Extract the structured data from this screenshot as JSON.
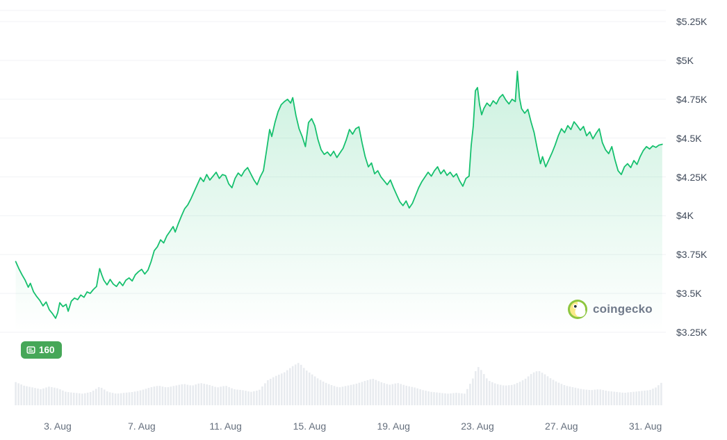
{
  "chart_data": {
    "type": "line",
    "xlim": [
      1.0,
      31.8
    ],
    "ylim": [
      3250,
      5250
    ],
    "grid": "horizontal",
    "legend": "none",
    "y_axis": {
      "side": "right",
      "tick_labels": [
        "$5.25K",
        "$5K",
        "$4.75K",
        "$4.5K",
        "$4.25K",
        "$4K",
        "$3.75K",
        "$3.5K",
        "$3.25K"
      ],
      "tick_values": [
        5250,
        5000,
        4750,
        4500,
        4250,
        4000,
        3750,
        3500,
        3250
      ]
    },
    "x_axis": {
      "tick_labels": [
        "3. Aug",
        "7. Aug",
        "11. Aug",
        "15. Aug",
        "19. Aug",
        "23. Aug",
        "27. Aug",
        "31. Aug"
      ],
      "tick_days": [
        3,
        7,
        11,
        15,
        19,
        23,
        27,
        31
      ]
    },
    "series": [
      {
        "name": "price",
        "unit": "USD",
        "points": [
          [
            1.0,
            3705
          ],
          [
            1.15,
            3660
          ],
          [
            1.3,
            3620
          ],
          [
            1.45,
            3585
          ],
          [
            1.6,
            3540
          ],
          [
            1.7,
            3565
          ],
          [
            1.85,
            3510
          ],
          [
            2.0,
            3480
          ],
          [
            2.15,
            3455
          ],
          [
            2.3,
            3420
          ],
          [
            2.45,
            3445
          ],
          [
            2.6,
            3395
          ],
          [
            2.75,
            3370
          ],
          [
            2.9,
            3340
          ],
          [
            3.0,
            3375
          ],
          [
            3.1,
            3440
          ],
          [
            3.25,
            3415
          ],
          [
            3.4,
            3430
          ],
          [
            3.5,
            3385
          ],
          [
            3.65,
            3450
          ],
          [
            3.8,
            3470
          ],
          [
            3.95,
            3460
          ],
          [
            4.1,
            3490
          ],
          [
            4.25,
            3475
          ],
          [
            4.4,
            3510
          ],
          [
            4.55,
            3500
          ],
          [
            4.7,
            3525
          ],
          [
            4.85,
            3545
          ],
          [
            5.0,
            3660
          ],
          [
            5.1,
            3620
          ],
          [
            5.2,
            3585
          ],
          [
            5.35,
            3555
          ],
          [
            5.5,
            3590
          ],
          [
            5.65,
            3560
          ],
          [
            5.8,
            3545
          ],
          [
            5.95,
            3575
          ],
          [
            6.1,
            3550
          ],
          [
            6.25,
            3585
          ],
          [
            6.4,
            3600
          ],
          [
            6.55,
            3580
          ],
          [
            6.7,
            3620
          ],
          [
            6.85,
            3640
          ],
          [
            7.0,
            3655
          ],
          [
            7.15,
            3625
          ],
          [
            7.3,
            3650
          ],
          [
            7.45,
            3705
          ],
          [
            7.6,
            3775
          ],
          [
            7.75,
            3800
          ],
          [
            7.9,
            3845
          ],
          [
            8.05,
            3825
          ],
          [
            8.2,
            3870
          ],
          [
            8.35,
            3900
          ],
          [
            8.5,
            3930
          ],
          [
            8.6,
            3895
          ],
          [
            8.75,
            3950
          ],
          [
            8.9,
            4000
          ],
          [
            9.05,
            4045
          ],
          [
            9.2,
            4070
          ],
          [
            9.35,
            4110
          ],
          [
            9.5,
            4155
          ],
          [
            9.65,
            4200
          ],
          [
            9.8,
            4245
          ],
          [
            9.95,
            4220
          ],
          [
            10.1,
            4265
          ],
          [
            10.25,
            4230
          ],
          [
            10.4,
            4255
          ],
          [
            10.55,
            4280
          ],
          [
            10.7,
            4240
          ],
          [
            10.85,
            4265
          ],
          [
            11.0,
            4258
          ],
          [
            11.15,
            4205
          ],
          [
            11.3,
            4180
          ],
          [
            11.45,
            4240
          ],
          [
            11.6,
            4275
          ],
          [
            11.75,
            4255
          ],
          [
            11.9,
            4290
          ],
          [
            12.05,
            4310
          ],
          [
            12.2,
            4270
          ],
          [
            12.35,
            4230
          ],
          [
            12.5,
            4200
          ],
          [
            12.65,
            4250
          ],
          [
            12.8,
            4290
          ],
          [
            12.95,
            4420
          ],
          [
            13.1,
            4555
          ],
          [
            13.2,
            4510
          ],
          [
            13.35,
            4600
          ],
          [
            13.5,
            4670
          ],
          [
            13.65,
            4715
          ],
          [
            13.8,
            4735
          ],
          [
            13.95,
            4750
          ],
          [
            14.1,
            4725
          ],
          [
            14.2,
            4760
          ],
          [
            14.35,
            4645
          ],
          [
            14.5,
            4560
          ],
          [
            14.65,
            4510
          ],
          [
            14.8,
            4445
          ],
          [
            14.95,
            4600
          ],
          [
            15.1,
            4625
          ],
          [
            15.25,
            4580
          ],
          [
            15.4,
            4490
          ],
          [
            15.55,
            4425
          ],
          [
            15.7,
            4395
          ],
          [
            15.85,
            4410
          ],
          [
            16.0,
            4385
          ],
          [
            16.15,
            4415
          ],
          [
            16.3,
            4375
          ],
          [
            16.45,
            4405
          ],
          [
            16.6,
            4435
          ],
          [
            16.75,
            4490
          ],
          [
            16.9,
            4555
          ],
          [
            17.05,
            4525
          ],
          [
            17.2,
            4560
          ],
          [
            17.35,
            4572
          ],
          [
            17.5,
            4470
          ],
          [
            17.65,
            4380
          ],
          [
            17.8,
            4315
          ],
          [
            17.95,
            4340
          ],
          [
            18.1,
            4270
          ],
          [
            18.25,
            4290
          ],
          [
            18.4,
            4250
          ],
          [
            18.55,
            4225
          ],
          [
            18.7,
            4200
          ],
          [
            18.85,
            4230
          ],
          [
            19.0,
            4180
          ],
          [
            19.15,
            4135
          ],
          [
            19.3,
            4090
          ],
          [
            19.45,
            4065
          ],
          [
            19.6,
            4095
          ],
          [
            19.75,
            4050
          ],
          [
            19.9,
            4080
          ],
          [
            20.05,
            4130
          ],
          [
            20.2,
            4180
          ],
          [
            20.35,
            4220
          ],
          [
            20.5,
            4250
          ],
          [
            20.65,
            4280
          ],
          [
            20.8,
            4255
          ],
          [
            20.95,
            4290
          ],
          [
            21.1,
            4315
          ],
          [
            21.25,
            4270
          ],
          [
            21.4,
            4295
          ],
          [
            21.55,
            4260
          ],
          [
            21.7,
            4280
          ],
          [
            21.85,
            4250
          ],
          [
            22.0,
            4270
          ],
          [
            22.15,
            4225
          ],
          [
            22.3,
            4190
          ],
          [
            22.45,
            4240
          ],
          [
            22.6,
            4255
          ],
          [
            22.7,
            4450
          ],
          [
            22.8,
            4580
          ],
          [
            22.9,
            4805
          ],
          [
            23.0,
            4825
          ],
          [
            23.1,
            4715
          ],
          [
            23.2,
            4650
          ],
          [
            23.3,
            4690
          ],
          [
            23.45,
            4725
          ],
          [
            23.6,
            4705
          ],
          [
            23.75,
            4740
          ],
          [
            23.9,
            4720
          ],
          [
            24.05,
            4760
          ],
          [
            24.2,
            4780
          ],
          [
            24.35,
            4745
          ],
          [
            24.5,
            4720
          ],
          [
            24.65,
            4750
          ],
          [
            24.8,
            4735
          ],
          [
            24.9,
            4930
          ],
          [
            25.0,
            4760
          ],
          [
            25.1,
            4690
          ],
          [
            25.25,
            4660
          ],
          [
            25.4,
            4685
          ],
          [
            25.55,
            4605
          ],
          [
            25.7,
            4535
          ],
          [
            25.85,
            4430
          ],
          [
            26.0,
            4335
          ],
          [
            26.1,
            4380
          ],
          [
            26.25,
            4315
          ],
          [
            26.4,
            4360
          ],
          [
            26.55,
            4405
          ],
          [
            26.7,
            4455
          ],
          [
            26.85,
            4515
          ],
          [
            27.0,
            4560
          ],
          [
            27.15,
            4535
          ],
          [
            27.3,
            4580
          ],
          [
            27.45,
            4555
          ],
          [
            27.6,
            4605
          ],
          [
            27.75,
            4580
          ],
          [
            27.9,
            4550
          ],
          [
            28.05,
            4575
          ],
          [
            28.2,
            4515
          ],
          [
            28.35,
            4540
          ],
          [
            28.5,
            4495
          ],
          [
            28.65,
            4530
          ],
          [
            28.8,
            4560
          ],
          [
            28.95,
            4470
          ],
          [
            29.1,
            4425
          ],
          [
            29.25,
            4400
          ],
          [
            29.4,
            4445
          ],
          [
            29.55,
            4360
          ],
          [
            29.7,
            4290
          ],
          [
            29.85,
            4265
          ],
          [
            30.0,
            4315
          ],
          [
            30.15,
            4335
          ],
          [
            30.3,
            4310
          ],
          [
            30.45,
            4355
          ],
          [
            30.6,
            4330
          ],
          [
            30.75,
            4380
          ],
          [
            30.9,
            4420
          ],
          [
            31.05,
            4445
          ],
          [
            31.2,
            4430
          ],
          [
            31.35,
            4450
          ],
          [
            31.5,
            4440
          ],
          [
            31.65,
            4455
          ],
          [
            31.8,
            4460
          ]
        ]
      }
    ],
    "volume": {
      "unit": "relative",
      "points": [
        [
          1.0,
          52
        ],
        [
          1.4,
          44
        ],
        [
          1.8,
          40
        ],
        [
          2.2,
          36
        ],
        [
          2.6,
          42
        ],
        [
          3.0,
          38
        ],
        [
          3.4,
          30
        ],
        [
          3.8,
          28
        ],
        [
          4.2,
          26
        ],
        [
          4.6,
          30
        ],
        [
          5.0,
          42
        ],
        [
          5.4,
          30
        ],
        [
          5.8,
          26
        ],
        [
          6.2,
          28
        ],
        [
          6.6,
          30
        ],
        [
          7.0,
          34
        ],
        [
          7.4,
          40
        ],
        [
          7.8,
          44
        ],
        [
          8.2,
          40
        ],
        [
          8.6,
          44
        ],
        [
          9.0,
          48
        ],
        [
          9.4,
          44
        ],
        [
          9.8,
          50
        ],
        [
          10.2,
          46
        ],
        [
          10.6,
          40
        ],
        [
          11.0,
          44
        ],
        [
          11.4,
          36
        ],
        [
          11.8,
          34
        ],
        [
          12.2,
          30
        ],
        [
          12.6,
          34
        ],
        [
          13.0,
          56
        ],
        [
          13.4,
          66
        ],
        [
          13.8,
          74
        ],
        [
          14.2,
          88
        ],
        [
          14.5,
          96
        ],
        [
          14.8,
          80
        ],
        [
          15.1,
          70
        ],
        [
          15.4,
          60
        ],
        [
          15.7,
          52
        ],
        [
          16.0,
          46
        ],
        [
          16.4,
          40
        ],
        [
          16.8,
          44
        ],
        [
          17.2,
          48
        ],
        [
          17.6,
          54
        ],
        [
          18.0,
          60
        ],
        [
          18.4,
          52
        ],
        [
          18.8,
          46
        ],
        [
          19.2,
          50
        ],
        [
          19.6,
          44
        ],
        [
          20.0,
          40
        ],
        [
          20.4,
          34
        ],
        [
          20.8,
          30
        ],
        [
          21.2,
          28
        ],
        [
          21.6,
          26
        ],
        [
          22.0,
          28
        ],
        [
          22.4,
          26
        ],
        [
          22.8,
          62
        ],
        [
          23.0,
          88
        ],
        [
          23.2,
          78
        ],
        [
          23.5,
          56
        ],
        [
          23.9,
          48
        ],
        [
          24.3,
          44
        ],
        [
          24.7,
          46
        ],
        [
          25.0,
          52
        ],
        [
          25.3,
          60
        ],
        [
          25.6,
          72
        ],
        [
          25.9,
          78
        ],
        [
          26.2,
          70
        ],
        [
          26.5,
          60
        ],
        [
          26.8,
          52
        ],
        [
          27.2,
          44
        ],
        [
          27.6,
          40
        ],
        [
          28.0,
          36
        ],
        [
          28.4,
          34
        ],
        [
          28.8,
          36
        ],
        [
          29.2,
          32
        ],
        [
          29.6,
          30
        ],
        [
          30.0,
          28
        ],
        [
          30.4,
          30
        ],
        [
          30.8,
          32
        ],
        [
          31.2,
          34
        ],
        [
          31.5,
          40
        ],
        [
          31.8,
          52
        ]
      ]
    },
    "colors": {
      "line": "#16c06e",
      "fill_top": "rgba(22,192,110,0.22)",
      "fill_bottom": "rgba(22,192,110,0.0)",
      "volume": "#e8ebef",
      "grid": "#f0f2f5",
      "y_label": "#414b5b",
      "x_label": "#646e7c",
      "badge": "#46a758",
      "watermark_text": "#707a8a"
    }
  },
  "badge": {
    "label": "160"
  },
  "watermark": {
    "label": "coingecko"
  }
}
